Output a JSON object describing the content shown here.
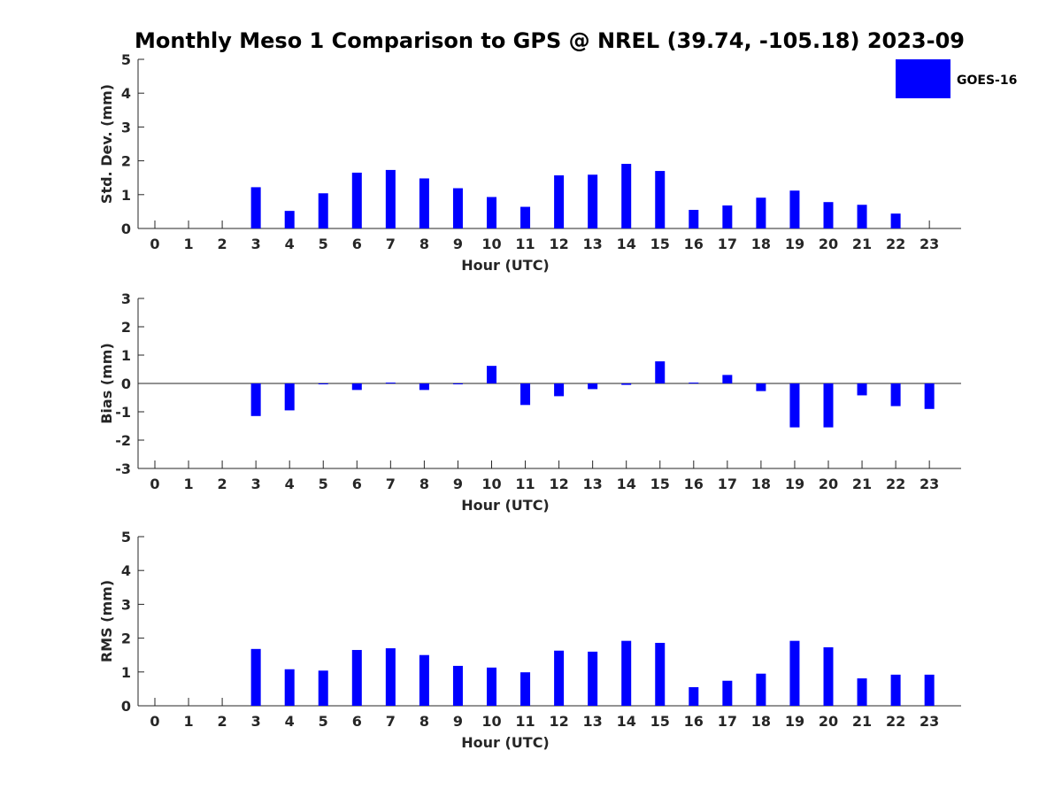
{
  "chart_data": {
    "title": "Monthly Meso 1 Comparison to GPS @ NREL (39.74, -105.18) 2023-09",
    "legend": {
      "placement": "top-right",
      "entries": [
        {
          "name": "GOES-16",
          "color": "#0000ff"
        }
      ]
    },
    "bar_color": "#0000ff",
    "panels": [
      {
        "id": "std",
        "type": "bar",
        "xlabel": "Hour (UTC)",
        "ylabel": "Std. Dev. (mm)",
        "ylim": [
          0,
          5
        ],
        "yticks": [
          "0",
          "1",
          "2",
          "3",
          "4",
          "5"
        ],
        "categories": [
          "0",
          "1",
          "2",
          "3",
          "4",
          "5",
          "6",
          "7",
          "8",
          "9",
          "10",
          "11",
          "12",
          "13",
          "14",
          "15",
          "16",
          "17",
          "18",
          "19",
          "20",
          "21",
          "22",
          "23"
        ],
        "series": [
          {
            "name": "GOES-16",
            "values": [
              null,
              null,
              null,
              1.22,
              0.52,
              1.04,
              1.65,
              1.73,
              1.48,
              1.19,
              0.93,
              0.64,
              1.57,
              1.59,
              1.91,
              1.7,
              0.55,
              0.68,
              0.91,
              1.12,
              0.78,
              0.7,
              0.44,
              null
            ]
          }
        ]
      },
      {
        "id": "bias",
        "type": "bar",
        "xlabel": "Hour (UTC)",
        "ylabel": "Bias (mm)",
        "ylim": [
          -3,
          3
        ],
        "yticks": [
          "-3",
          "-2",
          "-1",
          "0",
          "1",
          "2",
          "3"
        ],
        "zero_line": true,
        "categories": [
          "0",
          "1",
          "2",
          "3",
          "4",
          "5",
          "6",
          "7",
          "8",
          "9",
          "10",
          "11",
          "12",
          "13",
          "14",
          "15",
          "16",
          "17",
          "18",
          "19",
          "20",
          "21",
          "22",
          "23"
        ],
        "series": [
          {
            "name": "GOES-16",
            "values": [
              null,
              null,
              null,
              -1.15,
              -0.95,
              0.0,
              -0.23,
              0.03,
              -0.23,
              0.0,
              0.62,
              -0.76,
              -0.45,
              -0.2,
              -0.05,
              0.78,
              0.03,
              0.3,
              -0.27,
              -1.55,
              -1.55,
              -0.42,
              -0.8,
              -0.9
            ]
          }
        ]
      },
      {
        "id": "rms",
        "type": "bar",
        "xlabel": "Hour (UTC)",
        "ylabel": "RMS (mm)",
        "ylim": [
          0,
          5
        ],
        "yticks": [
          "0",
          "1",
          "2",
          "3",
          "4",
          "5"
        ],
        "categories": [
          "0",
          "1",
          "2",
          "3",
          "4",
          "5",
          "6",
          "7",
          "8",
          "9",
          "10",
          "11",
          "12",
          "13",
          "14",
          "15",
          "16",
          "17",
          "18",
          "19",
          "20",
          "21",
          "22",
          "23"
        ],
        "series": [
          {
            "name": "GOES-16",
            "values": [
              null,
              null,
              null,
              1.68,
              1.08,
              1.04,
              1.65,
              1.7,
              1.5,
              1.18,
              1.13,
              0.99,
              1.63,
              1.6,
              1.92,
              1.86,
              0.55,
              0.74,
              0.95,
              1.92,
              1.73,
              0.81,
              0.92,
              0.92
            ]
          }
        ]
      }
    ]
  }
}
